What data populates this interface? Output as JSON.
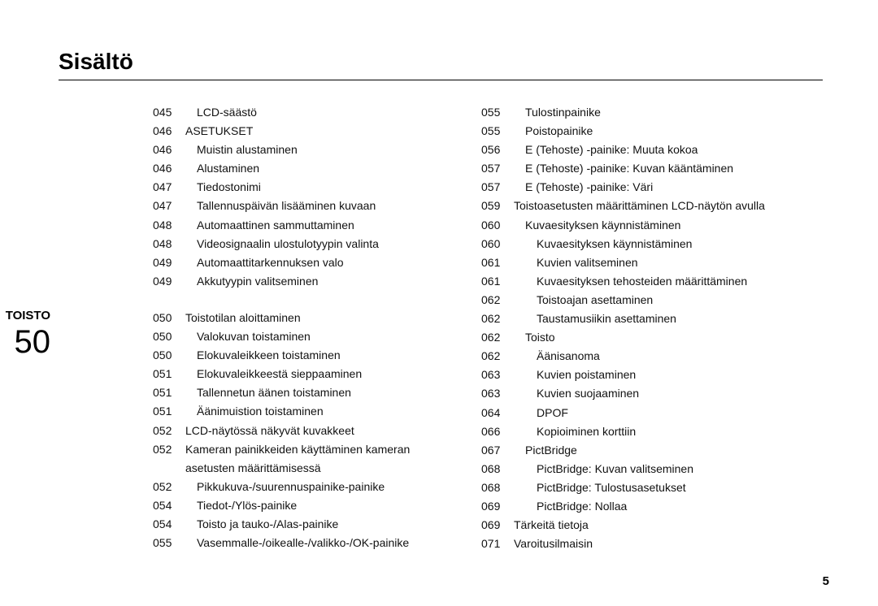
{
  "page": {
    "title": "Sisältö",
    "number": "5"
  },
  "section": {
    "label": "TOISTO",
    "start_page": "50"
  },
  "col1": [
    {
      "num": "045",
      "text": "LCD-säästö",
      "indent": 1
    },
    {
      "num": "046",
      "text": "ASETUKSET",
      "indent": 0
    },
    {
      "num": "046",
      "text": "Muistin alustaminen",
      "indent": 1
    },
    {
      "num": "046",
      "text": "Alustaminen",
      "indent": 1
    },
    {
      "num": "047",
      "text": "Tiedostonimi",
      "indent": 1
    },
    {
      "num": "047",
      "text": "Tallennuspäivän lisääminen kuvaan",
      "indent": 1
    },
    {
      "num": "048",
      "text": "Automaattinen sammuttaminen",
      "indent": 1
    },
    {
      "num": "048",
      "text": "Videosignaalin ulostulotyypin valinta",
      "indent": 1
    },
    {
      "num": "049",
      "text": "Automaattitarkennuksen valo",
      "indent": 1
    },
    {
      "num": "049",
      "text": "Akkutyypin valitseminen",
      "indent": 1
    }
  ],
  "col1b": [
    {
      "num": "050",
      "text": "Toistotilan aloittaminen",
      "indent": 0
    },
    {
      "num": "050",
      "text": "Valokuvan toistaminen",
      "indent": 1
    },
    {
      "num": "050",
      "text": "Elokuvaleikkeen toistaminen",
      "indent": 1
    },
    {
      "num": "051",
      "text": "Elokuvaleikkeestä sieppaaminen",
      "indent": 1
    },
    {
      "num": "051",
      "text": "Tallennetun äänen toistaminen",
      "indent": 1
    },
    {
      "num": "051",
      "text": "Äänimuistion toistaminen",
      "indent": 1
    },
    {
      "num": "052",
      "text": "LCD-näytössä näkyvät kuvakkeet",
      "indent": 0
    },
    {
      "num": "052",
      "text": "Kameran painikkeiden käyttäminen kameran asetusten määrittämisessä",
      "indent": 0
    },
    {
      "num": "052",
      "text": "Pikkukuva-/suurennuspainike-painike",
      "indent": 1
    },
    {
      "num": "054",
      "text": "Tiedot-/Ylös-painike",
      "indent": 1
    },
    {
      "num": "054",
      "text": "Toisto ja tauko-/Alas-painike",
      "indent": 1
    },
    {
      "num": "055",
      "text": "Vasemmalle-/oikealle-/valikko-/OK-painike",
      "indent": 1
    }
  ],
  "col2": [
    {
      "num": "055",
      "text": "Tulostinpainike",
      "indent": 1
    },
    {
      "num": "055",
      "text": "Poistopainike",
      "indent": 1
    },
    {
      "num": "056",
      "text": "E (Tehoste) -painike: Muuta kokoa",
      "indent": 1
    },
    {
      "num": "057",
      "text": "E (Tehoste) -painike: Kuvan kääntäminen",
      "indent": 1
    },
    {
      "num": "057",
      "text": "E (Tehoste) -painike: Väri",
      "indent": 1
    },
    {
      "num": "059",
      "text": "Toistoasetusten määrittäminen LCD-näytön avulla",
      "indent": 0
    },
    {
      "num": "060",
      "text": "Kuvaesityksen käynnistäminen",
      "indent": 1
    },
    {
      "num": "060",
      "text": "Kuvaesityksen käynnistäminen",
      "indent": 2
    },
    {
      "num": "061",
      "text": "Kuvien valitseminen",
      "indent": 2
    },
    {
      "num": "061",
      "text": "Kuvaesityksen tehosteiden määrittäminen",
      "indent": 2
    },
    {
      "num": "062",
      "text": "Toistoajan asettaminen",
      "indent": 2
    },
    {
      "num": "062",
      "text": "Taustamusiikin asettaminen",
      "indent": 2
    },
    {
      "num": "062",
      "text": "Toisto",
      "indent": 1
    },
    {
      "num": "062",
      "text": "Äänisanoma",
      "indent": 2
    },
    {
      "num": "063",
      "text": "Kuvien poistaminen",
      "indent": 2
    },
    {
      "num": "063",
      "text": "Kuvien suojaaminen",
      "indent": 2
    },
    {
      "num": "064",
      "text": "DPOF",
      "indent": 2
    },
    {
      "num": "066",
      "text": "Kopioiminen korttiin",
      "indent": 2
    },
    {
      "num": "067",
      "text": "PictBridge",
      "indent": 1
    },
    {
      "num": "068",
      "text": "PictBridge: Kuvan valitseminen",
      "indent": 2
    },
    {
      "num": "068",
      "text": "PictBridge: Tulostusasetukset",
      "indent": 2
    },
    {
      "num": "069",
      "text": "PictBridge: Nollaa",
      "indent": 2
    },
    {
      "num": "069",
      "text": "Tärkeitä tietoja",
      "indent": 0
    },
    {
      "num": "071",
      "text": "Varoitusilmaisin",
      "indent": 0
    }
  ]
}
